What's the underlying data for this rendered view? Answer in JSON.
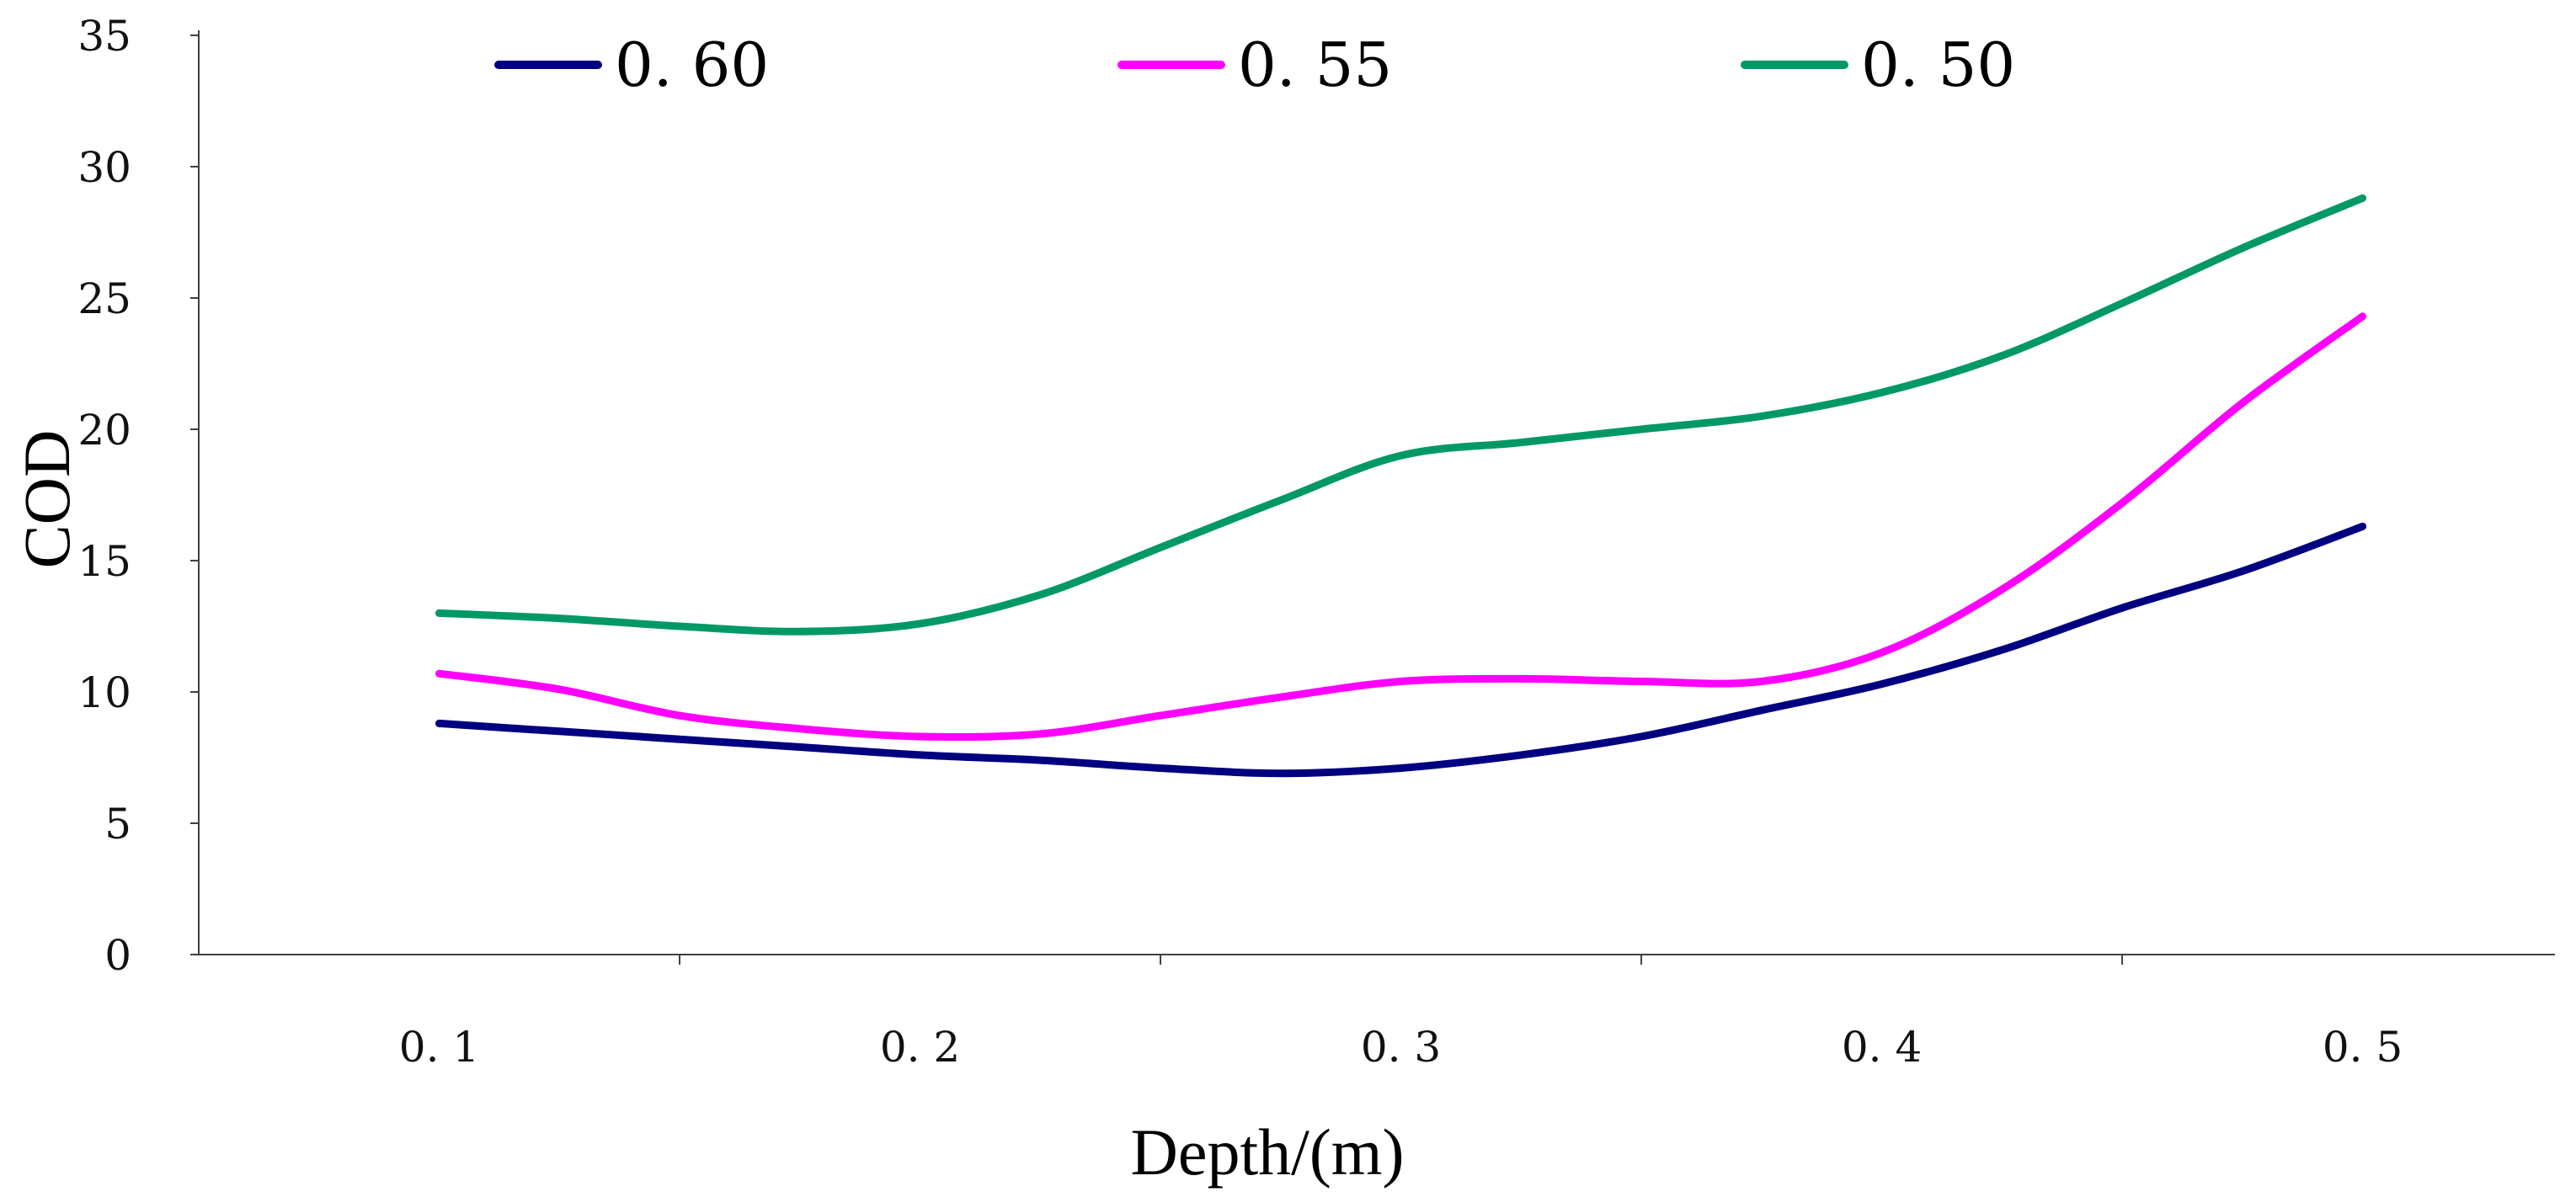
{
  "chart_data": {
    "type": "line",
    "title": "",
    "xlabel": "Depth/(m)",
    "ylabel": "COD",
    "xlim": [
      0.05,
      0.54
    ],
    "ylim": [
      0,
      35
    ],
    "y_ticks": [
      0,
      5,
      10,
      15,
      20,
      25,
      30,
      35
    ],
    "y_tick_labels": [
      "0",
      "5",
      "10",
      "15",
      "20",
      "25",
      "30",
      "35"
    ],
    "x_major_ticks": [
      0.15,
      0.25,
      0.35,
      0.45
    ],
    "x_tick_values": [
      0.1,
      0.2,
      0.3,
      0.4,
      0.5
    ],
    "x_tick_labels": [
      "0. 1",
      "0. 2",
      "0. 3",
      "0. 4",
      "0. 5"
    ],
    "grid": false,
    "legend_position": "top",
    "x": [
      0.1,
      0.125,
      0.15,
      0.175,
      0.2,
      0.225,
      0.25,
      0.275,
      0.3,
      0.325,
      0.35,
      0.375,
      0.4,
      0.425,
      0.45,
      0.475,
      0.5
    ],
    "series": [
      {
        "name": "0. 60",
        "color": "#000080",
        "values": [
          8.8,
          8.5,
          8.2,
          7.9,
          7.6,
          7.4,
          7.1,
          6.9,
          7.1,
          7.6,
          8.3,
          9.3,
          10.3,
          11.6,
          13.2,
          14.6,
          16.3
        ]
      },
      {
        "name": "0. 55",
        "color": "#FF00FF",
        "values": [
          10.7,
          10.1,
          9.1,
          8.6,
          8.3,
          8.4,
          9.1,
          9.8,
          10.4,
          10.5,
          10.4,
          10.4,
          11.5,
          13.9,
          17.2,
          21.0,
          24.3
        ]
      },
      {
        "name": "0. 50",
        "color": "#009966",
        "values": [
          13.0,
          12.8,
          12.5,
          12.3,
          12.6,
          13.7,
          15.5,
          17.3,
          19.0,
          19.5,
          20.0,
          20.5,
          21.4,
          22.8,
          24.8,
          26.9,
          28.8
        ]
      }
    ]
  }
}
